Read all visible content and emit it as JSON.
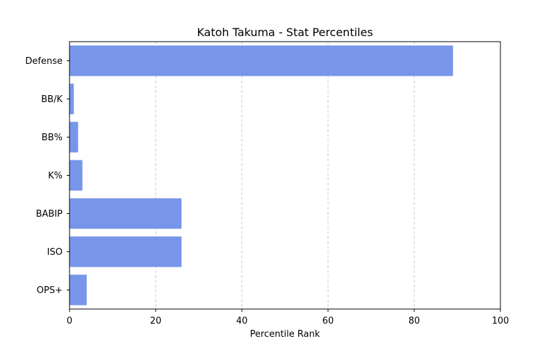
{
  "chart_data": {
    "type": "bar",
    "orientation": "horizontal",
    "title": "Katoh Takuma - Stat Percentiles",
    "xlabel": "Percentile Rank",
    "ylabel": "",
    "categories": [
      "Defense",
      "BB/K",
      "BB%",
      "K%",
      "BABIP",
      "ISO",
      "OPS+"
    ],
    "values": [
      89,
      1,
      2,
      3,
      26,
      26,
      4
    ],
    "xlim": [
      0,
      100
    ],
    "xticks": [
      0,
      20,
      40,
      60,
      80,
      100
    ],
    "grid": "x-dashed",
    "bar_color": "#7895EA",
    "grid_color": "#c8c8c8"
  }
}
